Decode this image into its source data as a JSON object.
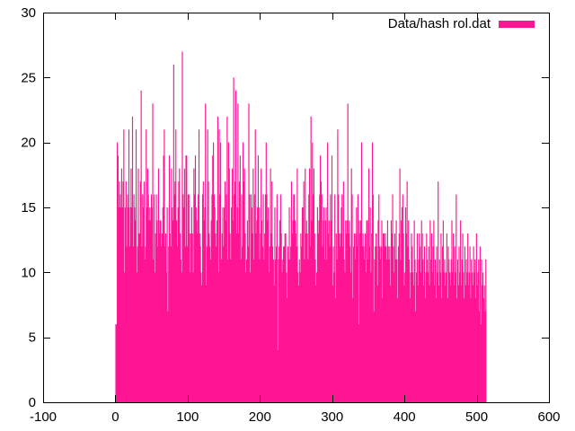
{
  "chart_data": {
    "type": "bar",
    "title": "",
    "xlabel": "",
    "ylabel": "",
    "xlim": [
      -100,
      600
    ],
    "ylim": [
      0,
      30
    ],
    "xticks": [
      -100,
      0,
      100,
      200,
      300,
      400,
      500,
      600
    ],
    "yticks": [
      0,
      5,
      10,
      15,
      20,
      25,
      30
    ],
    "xtick_labels": [
      "-100",
      "0",
      "100",
      "200",
      "300",
      "400",
      "500",
      "600"
    ],
    "ytick_labels": [
      "0",
      "5",
      "10",
      "15",
      "20",
      "25",
      "30"
    ],
    "grid": false,
    "legend_position": "top-right",
    "series": [
      {
        "name": "Data/hash rol.dat",
        "color": "#ff1493",
        "x_start": 0,
        "values": [
          6,
          6,
          20,
          19,
          15,
          17,
          16,
          15,
          18,
          15,
          17,
          21,
          10,
          15,
          17,
          12,
          16,
          15,
          21,
          12,
          15,
          18,
          15,
          22,
          12,
          16,
          15,
          14,
          21,
          10,
          12,
          18,
          13,
          13,
          17,
          24,
          12,
          16,
          15,
          17,
          11,
          12,
          21,
          15,
          18,
          16,
          14,
          15,
          14,
          16,
          15,
          23,
          11,
          16,
          10,
          13,
          16,
          14,
          12,
          18,
          13,
          14,
          14,
          12,
          13,
          15,
          19,
          21,
          12,
          13,
          10,
          15,
          7,
          12,
          19,
          13,
          12,
          18,
          15,
          14,
          26,
          16,
          17,
          21,
          14,
          12,
          15,
          17,
          18,
          13,
          11,
          10,
          27,
          16,
          15,
          18,
          12,
          19,
          19,
          12,
          16,
          16,
          13,
          10,
          13,
          15,
          13,
          10,
          18,
          16,
          19,
          15,
          14,
          13,
          16,
          21,
          13,
          12,
          10,
          9,
          16,
          17,
          14,
          15,
          23,
          9,
          12,
          21,
          17,
          13,
          12,
          11,
          14,
          16,
          19,
          20,
          16,
          15,
          13,
          12,
          14,
          22,
          10,
          21,
          16,
          20,
          11,
          13,
          15,
          12,
          15,
          17,
          14,
          16,
          22,
          11,
          20,
          18,
          13,
          11,
          15,
          18,
          14,
          25,
          16,
          17,
          24,
          13,
          15,
          23,
          13,
          17,
          19,
          11,
          16,
          12,
          20,
          17,
          18,
          13,
          10,
          11,
          14,
          12,
          23,
          16,
          10,
          16,
          15,
          13,
          18,
          11,
          16,
          21,
          13,
          14,
          15,
          19,
          15,
          11,
          13,
          18,
          14,
          12,
          16,
          11,
          13,
          16,
          20,
          16,
          14,
          15,
          10,
          12,
          18,
          13,
          17,
          12,
          11,
          9,
          15,
          11,
          12,
          16,
          4,
          11,
          12,
          14,
          16,
          13,
          10,
          11,
          12,
          12,
          13,
          13,
          10,
          8,
          12,
          11,
          15,
          11,
          12,
          17,
          13,
          14,
          16,
          16,
          14,
          13,
          12,
          18,
          10,
          9,
          11,
          10,
          13,
          12,
          15,
          15,
          17,
          11,
          18,
          13,
          14,
          13,
          11,
          16,
          18,
          12,
          22,
          14,
          20,
          16,
          18,
          13,
          11,
          9,
          10,
          15,
          13,
          14,
          16,
          19,
          17,
          16,
          12,
          14,
          15,
          11,
          14,
          15,
          11,
          20,
          13,
          14,
          12,
          16,
          14,
          19,
          9,
          12,
          10,
          16,
          8,
          13,
          11,
          21,
          16,
          13,
          12,
          13,
          15,
          16,
          12,
          17,
          11,
          10,
          14,
          13,
          14,
          23,
          13,
          14,
          12,
          10,
          18,
          16,
          8,
          12,
          13,
          11,
          13,
          15,
          12,
          16,
          6,
          14,
          13,
          14,
          20,
          12,
          13,
          12,
          11,
          13,
          10,
          14,
          14,
          11,
          18,
          12,
          15,
          10,
          13,
          20,
          16,
          7,
          11,
          12,
          13,
          12,
          9,
          14,
          16,
          12,
          11,
          12,
          14,
          8,
          13,
          13,
          12,
          13,
          12,
          11,
          14,
          12,
          11,
          12,
          9,
          14,
          13,
          16,
          12,
          10,
          13,
          11,
          14,
          11,
          8,
          12,
          13,
          18,
          11,
          14,
          15,
          16,
          13,
          9,
          10,
          15,
          13,
          17,
          12,
          14,
          11,
          8,
          10,
          13,
          12,
          10,
          9,
          14,
          11,
          7,
          10,
          13,
          9,
          11,
          13,
          12,
          10,
          14,
          13,
          11,
          9,
          12,
          8,
          10,
          13,
          11,
          10,
          12,
          9,
          14,
          11,
          13,
          10,
          12,
          14,
          9,
          11,
          8,
          12,
          10,
          17,
          9,
          11,
          10,
          13,
          8,
          12,
          14,
          10,
          11,
          9,
          10,
          13,
          8,
          12,
          11,
          10,
          9,
          11,
          14,
          10,
          13,
          9,
          12,
          10,
          16,
          8,
          11,
          9,
          12,
          10,
          14,
          9,
          11,
          13,
          10,
          8,
          12,
          9,
          11,
          10,
          13,
          9,
          10,
          12,
          8,
          11,
          10,
          9,
          12,
          10,
          11,
          8,
          13,
          9,
          10,
          11,
          7,
          12,
          6,
          11,
          9,
          10,
          8,
          9,
          7,
          11
        ]
      }
    ]
  }
}
